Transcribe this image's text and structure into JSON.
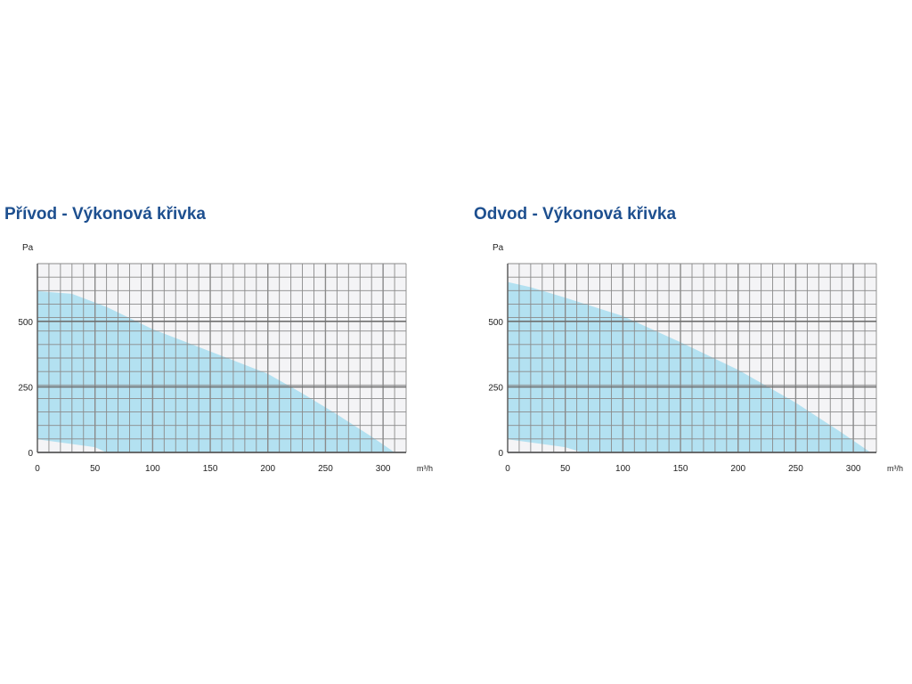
{
  "chart_data": [
    {
      "type": "area",
      "title": "Přívod - Výkonová křivka",
      "ylabel": "Pa",
      "xlabel": "m³/h",
      "xlim": [
        0,
        320
      ],
      "ylim": [
        0,
        720
      ],
      "xticks": [
        0,
        50,
        100,
        150,
        200,
        250,
        300
      ],
      "yticks": [
        0,
        250,
        500
      ],
      "grid": true,
      "colors": {
        "fill": "#b3e1f1",
        "grid": "#8a8a8a",
        "background": "#f4f4f6",
        "title": "#1d4f8f"
      },
      "upper_boundary": {
        "x": [
          0,
          30,
          60,
          100,
          150,
          200,
          230,
          260,
          290,
          310
        ],
        "y": [
          615,
          605,
          555,
          470,
          385,
          300,
          225,
          145,
          60,
          0
        ]
      },
      "lower_boundary": {
        "x": [
          0,
          50,
          60
        ],
        "y": [
          50,
          20,
          0
        ]
      }
    },
    {
      "type": "area",
      "title": "Odvod - Výkonová křivka",
      "ylabel": "Pa",
      "xlabel": "m³/h",
      "xlim": [
        0,
        320
      ],
      "ylim": [
        0,
        720
      ],
      "xticks": [
        0,
        50,
        100,
        150,
        200,
        250,
        300
      ],
      "yticks": [
        0,
        250,
        500
      ],
      "grid": true,
      "colors": {
        "fill": "#b3e1f1",
        "grid": "#8a8a8a",
        "background": "#f4f4f6",
        "title": "#1d4f8f"
      },
      "upper_boundary": {
        "x": [
          0,
          20,
          50,
          100,
          150,
          200,
          250,
          290,
          315
        ],
        "y": [
          650,
          630,
          590,
          520,
          420,
          315,
          190,
          75,
          0
        ]
      },
      "lower_boundary": {
        "x": [
          0,
          50,
          65
        ],
        "y": [
          50,
          20,
          0
        ]
      }
    }
  ]
}
